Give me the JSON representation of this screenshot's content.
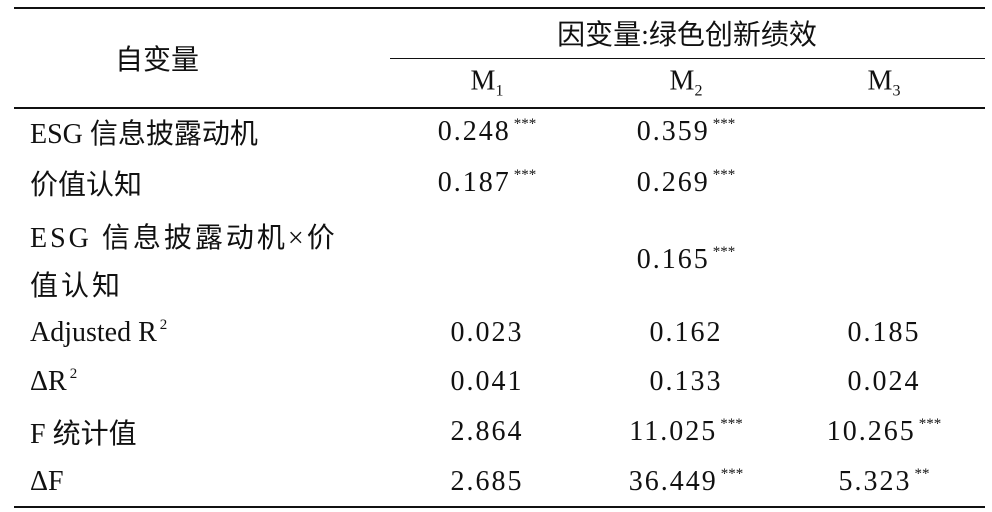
{
  "header": {
    "independent": "自变量",
    "dependent": "因变量:绿色创新绩效",
    "models": [
      {
        "main": "M",
        "sub": "1"
      },
      {
        "main": "M",
        "sub": "2"
      },
      {
        "main": "M",
        "sub": "3"
      }
    ]
  },
  "rows": [
    {
      "label": "ESG 信息披露动机",
      "cells": [
        {
          "value": "0.248",
          "stars": "***"
        },
        {
          "value": "0.359",
          "stars": "***"
        },
        null
      ]
    },
    {
      "label": "价值认知",
      "cells": [
        {
          "value": "0.187",
          "stars": "***"
        },
        {
          "value": "0.269",
          "stars": "***"
        },
        null
      ]
    },
    {
      "label_lines": [
        "ESG 信息披露动机×价",
        "值认知"
      ],
      "cells": [
        null,
        {
          "value": "0.165",
          "stars": "***"
        },
        null
      ]
    },
    {
      "label": "Adjusted R",
      "label_sup": "2",
      "cells": [
        {
          "value": "0.023"
        },
        {
          "value": "0.162"
        },
        {
          "value": "0.185"
        }
      ]
    },
    {
      "label": "ΔR",
      "label_sup": "2",
      "cells": [
        {
          "value": "0.041"
        },
        {
          "value": "0.133"
        },
        {
          "value": "0.024"
        }
      ]
    },
    {
      "label": "F 统计值",
      "cells": [
        {
          "value": "2.864"
        },
        {
          "value": "11.025",
          "stars": "***"
        },
        {
          "value": "10.265",
          "stars": "***"
        }
      ]
    },
    {
      "label": "ΔF",
      "cells": [
        {
          "value": "2.685"
        },
        {
          "value": "36.449",
          "stars": "***"
        },
        {
          "value": "5.323",
          "stars": "**"
        }
      ]
    }
  ]
}
